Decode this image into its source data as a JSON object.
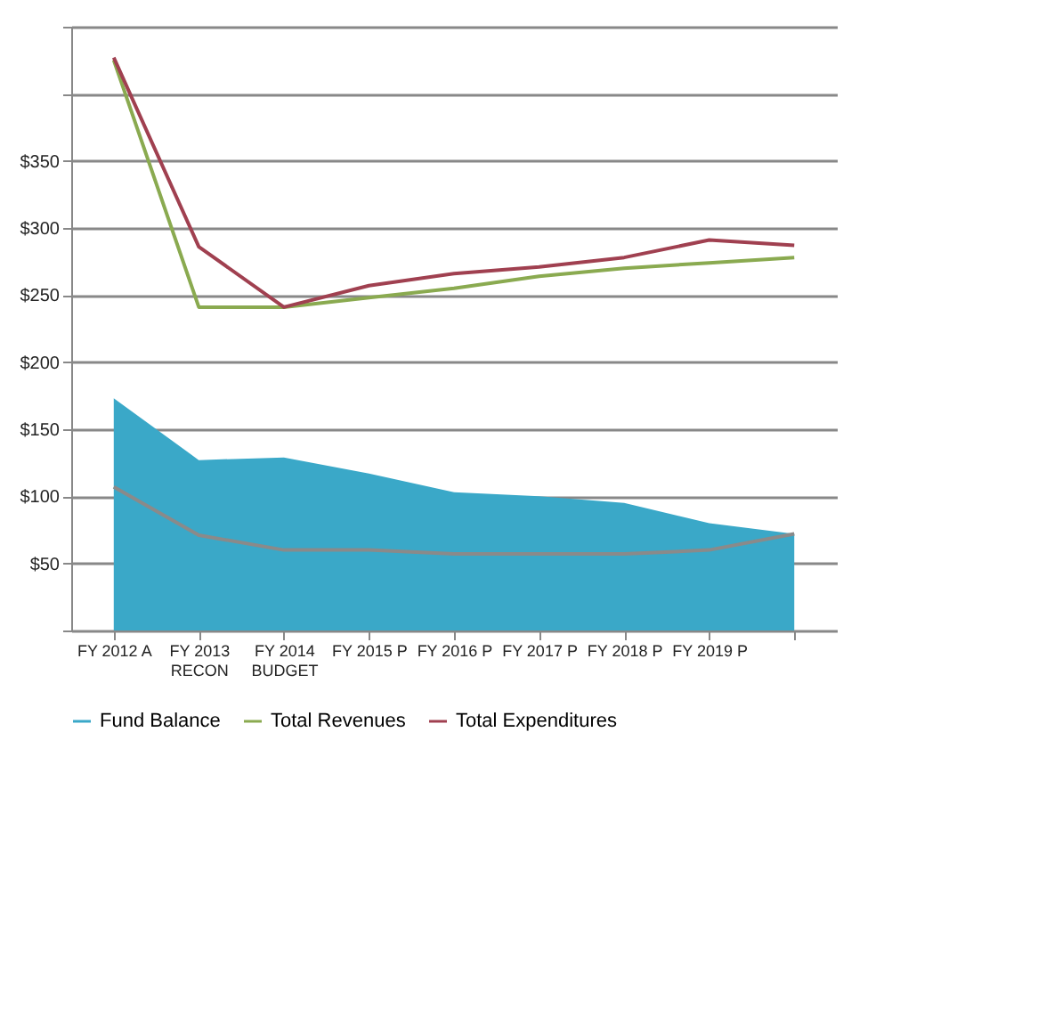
{
  "chart_data": {
    "type": "line",
    "categories": [
      "FY 2012 A",
      [
        "FY 2013",
        "RECON"
      ],
      [
        "FY 2014",
        "BUDGET"
      ],
      "FY 2015 P",
      "FY 2016 P",
      "FY 2017 P",
      "FY 2018 P",
      "FY 2019 P",
      null
    ],
    "series": [
      {
        "name": "Fund Balance",
        "type": "area",
        "color": "#3aa8c8",
        "values": [
          173,
          127,
          129,
          117,
          103,
          100,
          95,
          80,
          72
        ]
      },
      {
        "color": "#8a8a8a",
        "values": [
          107,
          71,
          60,
          60,
          57,
          57,
          57,
          60,
          72
        ]
      },
      {
        "name": "Total Revenues",
        "color": "#8aaa50",
        "values": [
          425,
          241,
          241,
          248,
          255,
          264,
          270,
          274,
          278
        ]
      },
      {
        "name": "Total Expenditures",
        "color": "#a04050",
        "values": [
          427,
          286,
          241,
          257,
          266,
          271,
          278,
          291,
          287
        ]
      }
    ],
    "ylim": [
      0,
      450
    ],
    "yticks": [
      {
        "value": 0,
        "label": null
      },
      {
        "value": 50,
        "label": "$50"
      },
      {
        "value": 100,
        "label": "$100"
      },
      {
        "value": 150,
        "label": "$150"
      },
      {
        "value": 200,
        "label": "$200"
      },
      {
        "value": 250,
        "label": "$250"
      },
      {
        "value": 300,
        "label": "$300"
      },
      {
        "value": 350,
        "label": "$350"
      },
      {
        "value": 400,
        "label": null
      },
      {
        "value": 450,
        "label": null
      }
    ],
    "grid": "y",
    "legend": "bottom"
  }
}
